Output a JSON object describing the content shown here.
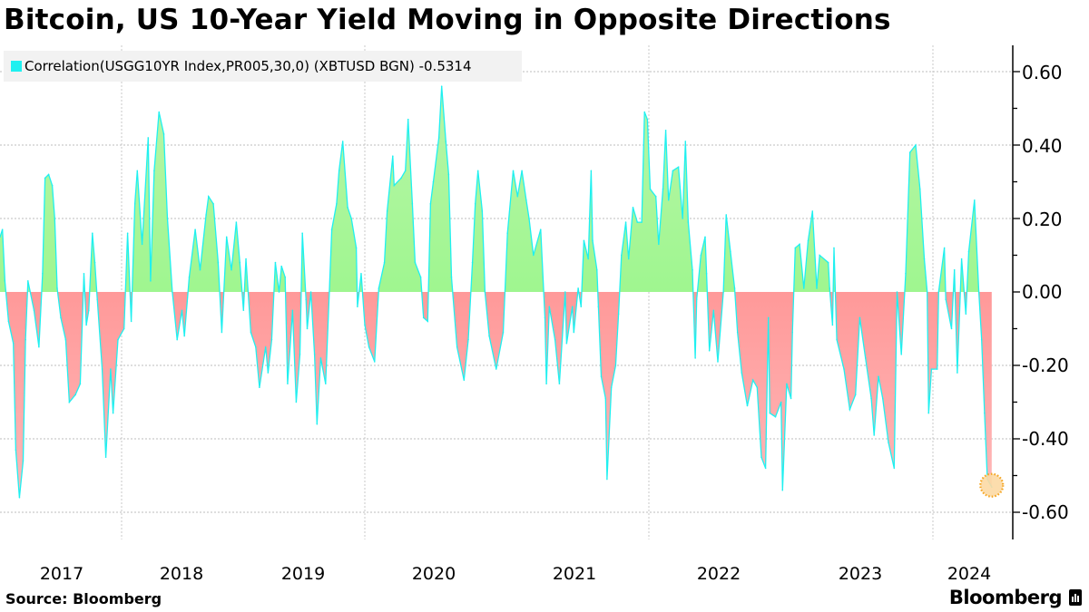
{
  "title": "Bitcoin, US 10-Year Yield Moving in Opposite Directions",
  "source": "Source: Bloomberg",
  "logo": "Bloomberg",
  "colors": {
    "line": "#1ff0f0",
    "positive_fill": "#8cf77e",
    "negative_fill": "#ff8080",
    "highlight": "#f5a623"
  },
  "chart_data": {
    "type": "area",
    "xlabel": "",
    "ylabel": "",
    "ylim": [
      -0.66,
      0.66
    ],
    "yticks": [
      "0.60",
      "0.40",
      "0.20",
      "0.00",
      "-0.20",
      "-0.40",
      "-0.60"
    ],
    "ytick_values": [
      0.6,
      0.4,
      0.2,
      0,
      -0.2,
      -0.4,
      -0.6
    ],
    "xticks": [
      "2017",
      "2018",
      "2019",
      "2020",
      "2021",
      "2022",
      "2023",
      "2024"
    ],
    "grid": true,
    "legend_position": "top-left",
    "series": [
      {
        "name": "Correlation(USGG10YR Index,PR005,30,0) (XBTUSD BGN) -0.5314",
        "last_value": -0.5314,
        "points": [
          [
            2017.0,
            0.15
          ],
          [
            2017.02,
            0.17
          ],
          [
            2017.04,
            0.03
          ],
          [
            2017.07,
            -0.08
          ],
          [
            2017.11,
            -0.14
          ],
          [
            2017.13,
            -0.43
          ],
          [
            2017.16,
            -0.56
          ],
          [
            2017.19,
            -0.46
          ],
          [
            2017.21,
            -0.13
          ],
          [
            2017.23,
            0.03
          ],
          [
            2017.28,
            -0.05
          ],
          [
            2017.32,
            -0.15
          ],
          [
            2017.35,
            0.05
          ],
          [
            2017.37,
            0.31
          ],
          [
            2017.4,
            0.32
          ],
          [
            2017.43,
            0.29
          ],
          [
            2017.45,
            0.2
          ],
          [
            2017.47,
            0.01
          ],
          [
            2017.5,
            -0.07
          ],
          [
            2017.54,
            -0.13
          ],
          [
            2017.57,
            -0.3
          ],
          [
            2017.62,
            -0.28
          ],
          [
            2017.66,
            -0.25
          ],
          [
            2017.69,
            0.05
          ],
          [
            2017.71,
            -0.09
          ],
          [
            2017.73,
            -0.05
          ],
          [
            2017.76,
            0.16
          ],
          [
            2017.78,
            0.08
          ],
          [
            2017.8,
            -0.02
          ],
          [
            2017.84,
            -0.21
          ],
          [
            2017.87,
            -0.45
          ],
          [
            2017.91,
            -0.21
          ],
          [
            2017.93,
            -0.33
          ],
          [
            2017.97,
            -0.13
          ],
          [
            2018.02,
            -0.1
          ],
          [
            2018.05,
            0.16
          ],
          [
            2018.08,
            -0.08
          ],
          [
            2018.11,
            0.24
          ],
          [
            2018.13,
            0.33
          ],
          [
            2018.17,
            0.13
          ],
          [
            2018.22,
            0.42
          ],
          [
            2018.24,
            0.03
          ],
          [
            2018.27,
            0.33
          ],
          [
            2018.31,
            0.49
          ],
          [
            2018.35,
            0.43
          ],
          [
            2018.38,
            0.2
          ],
          [
            2018.42,
            0.0
          ],
          [
            2018.46,
            -0.13
          ],
          [
            2018.5,
            -0.05
          ],
          [
            2018.52,
            -0.12
          ],
          [
            2018.56,
            0.04
          ],
          [
            2018.61,
            0.17
          ],
          [
            2018.65,
            0.06
          ],
          [
            2018.7,
            0.21
          ],
          [
            2018.72,
            0.26
          ],
          [
            2018.76,
            0.24
          ],
          [
            2018.8,
            0.08
          ],
          [
            2018.83,
            -0.11
          ],
          [
            2018.87,
            0.15
          ],
          [
            2018.91,
            0.06
          ],
          [
            2018.95,
            0.19
          ],
          [
            2018.98,
            0.08
          ],
          [
            2019.01,
            -0.05
          ],
          [
            2019.03,
            0.09
          ],
          [
            2019.07,
            -0.11
          ],
          [
            2019.11,
            -0.15
          ],
          [
            2019.14,
            -0.26
          ],
          [
            2019.19,
            -0.15
          ],
          [
            2019.21,
            -0.22
          ],
          [
            2019.24,
            -0.13
          ],
          [
            2019.27,
            0.08
          ],
          [
            2019.3,
            0.0
          ],
          [
            2019.32,
            0.07
          ],
          [
            2019.35,
            0.04
          ],
          [
            2019.37,
            -0.25
          ],
          [
            2019.41,
            -0.05
          ],
          [
            2019.44,
            -0.3
          ],
          [
            2019.47,
            -0.17
          ],
          [
            2019.49,
            0.16
          ],
          [
            2019.52,
            -0.02
          ],
          [
            2019.53,
            -0.1
          ],
          [
            2019.56,
            0.0
          ],
          [
            2019.59,
            -0.17
          ],
          [
            2019.61,
            -0.36
          ],
          [
            2019.64,
            -0.18
          ],
          [
            2019.68,
            -0.25
          ],
          [
            2019.71,
            0.0
          ],
          [
            2019.73,
            0.17
          ],
          [
            2019.77,
            0.24
          ],
          [
            2019.79,
            0.33
          ],
          [
            2019.82,
            0.41
          ],
          [
            2019.86,
            0.23
          ],
          [
            2019.89,
            0.2
          ],
          [
            2019.93,
            0.12
          ],
          [
            2019.94,
            -0.04
          ],
          [
            2019.97,
            0.05
          ],
          [
            2020.0,
            -0.09
          ],
          [
            2020.03,
            -0.15
          ],
          [
            2020.07,
            -0.19
          ],
          [
            2020.1,
            0.01
          ],
          [
            2020.14,
            0.08
          ],
          [
            2020.16,
            0.22
          ],
          [
            2020.2,
            0.37
          ],
          [
            2020.21,
            0.29
          ],
          [
            2020.26,
            0.31
          ],
          [
            2020.29,
            0.33
          ],
          [
            2020.31,
            0.47
          ],
          [
            2020.34,
            0.24
          ],
          [
            2020.36,
            0.08
          ],
          [
            2020.4,
            0.04
          ],
          [
            2020.42,
            -0.07
          ],
          [
            2020.45,
            -0.08
          ],
          [
            2020.47,
            0.24
          ],
          [
            2020.49,
            0.3
          ],
          [
            2020.53,
            0.42
          ],
          [
            2020.55,
            0.56
          ],
          [
            2020.58,
            0.41
          ],
          [
            2020.6,
            0.32
          ],
          [
            2020.62,
            0.04
          ],
          [
            2020.66,
            -0.15
          ],
          [
            2020.71,
            -0.24
          ],
          [
            2020.74,
            -0.13
          ],
          [
            2020.77,
            0.08
          ],
          [
            2020.79,
            0.24
          ],
          [
            2020.81,
            0.33
          ],
          [
            2020.84,
            0.22
          ],
          [
            2020.86,
            0.0
          ],
          [
            2020.89,
            -0.12
          ],
          [
            2020.94,
            -0.21
          ],
          [
            2020.99,
            -0.11
          ],
          [
            2021.02,
            0.16
          ],
          [
            2021.06,
            0.33
          ],
          [
            2021.09,
            0.26
          ],
          [
            2021.12,
            0.33
          ],
          [
            2021.15,
            0.25
          ],
          [
            2021.17,
            0.2
          ],
          [
            2021.2,
            0.1
          ],
          [
            2021.25,
            0.17
          ],
          [
            2021.28,
            -0.07
          ],
          [
            2021.29,
            -0.25
          ],
          [
            2021.31,
            -0.04
          ],
          [
            2021.35,
            -0.13
          ],
          [
            2021.38,
            -0.25
          ],
          [
            2021.42,
            0.0
          ],
          [
            2021.43,
            -0.14
          ],
          [
            2021.47,
            -0.04
          ],
          [
            2021.48,
            -0.11
          ],
          [
            2021.51,
            0.01
          ],
          [
            2021.53,
            -0.04
          ],
          [
            2021.55,
            0.14
          ],
          [
            2021.58,
            0.09
          ],
          [
            2021.6,
            0.33
          ],
          [
            2021.61,
            0.14
          ],
          [
            2021.64,
            0.06
          ],
          [
            2021.65,
            -0.04
          ],
          [
            2021.67,
            -0.23
          ],
          [
            2021.7,
            -0.29
          ],
          [
            2021.71,
            -0.51
          ],
          [
            2021.74,
            -0.26
          ],
          [
            2021.77,
            -0.2
          ],
          [
            2021.79,
            -0.06
          ],
          [
            2021.81,
            0.1
          ],
          [
            2021.84,
            0.19
          ],
          [
            2021.86,
            0.09
          ],
          [
            2021.89,
            0.23
          ],
          [
            2021.92,
            0.19
          ],
          [
            2021.95,
            0.19
          ],
          [
            2021.97,
            0.49
          ],
          [
            2021.99,
            0.47
          ],
          [
            2022.01,
            0.28
          ],
          [
            2022.05,
            0.26
          ],
          [
            2022.07,
            0.13
          ],
          [
            2022.1,
            0.28
          ],
          [
            2022.12,
            0.44
          ],
          [
            2022.14,
            0.25
          ],
          [
            2022.17,
            0.33
          ],
          [
            2022.21,
            0.34
          ],
          [
            2022.24,
            0.2
          ],
          [
            2022.26,
            0.41
          ],
          [
            2022.28,
            0.19
          ],
          [
            2022.31,
            0.06
          ],
          [
            2022.33,
            -0.18
          ],
          [
            2022.34,
            -0.02
          ],
          [
            2022.37,
            0.1
          ],
          [
            2022.4,
            0.15
          ],
          [
            2022.41,
            0.05
          ],
          [
            2022.43,
            -0.16
          ],
          [
            2022.46,
            -0.05
          ],
          [
            2022.49,
            -0.19
          ],
          [
            2022.53,
            0.0
          ],
          [
            2022.55,
            0.21
          ],
          [
            2022.58,
            0.11
          ],
          [
            2022.61,
            0.01
          ],
          [
            2022.63,
            -0.11
          ],
          [
            2022.66,
            -0.22
          ],
          [
            2022.7,
            -0.31
          ],
          [
            2022.74,
            -0.24
          ],
          [
            2022.77,
            -0.26
          ],
          [
            2022.8,
            -0.45
          ],
          [
            2022.83,
            -0.48
          ],
          [
            2022.85,
            -0.07
          ],
          [
            2022.86,
            -0.33
          ],
          [
            2022.9,
            -0.34
          ],
          [
            2022.94,
            -0.3
          ],
          [
            2022.95,
            -0.54
          ],
          [
            2022.98,
            -0.25
          ],
          [
            2023.01,
            -0.29
          ],
          [
            2023.02,
            -0.11
          ],
          [
            2023.04,
            0.12
          ],
          [
            2023.07,
            0.13
          ],
          [
            2023.1,
            0.01
          ],
          [
            2023.13,
            0.14
          ],
          [
            2023.16,
            0.22
          ],
          [
            2023.19,
            0.01
          ],
          [
            2023.21,
            0.1
          ],
          [
            2023.27,
            0.08
          ],
          [
            2023.28,
            0.01
          ],
          [
            2023.3,
            -0.09
          ],
          [
            2023.31,
            0.12
          ],
          [
            2023.33,
            -0.13
          ],
          [
            2023.38,
            -0.21
          ],
          [
            2023.42,
            -0.32
          ],
          [
            2023.46,
            -0.28
          ],
          [
            2023.49,
            -0.07
          ],
          [
            2023.53,
            -0.18
          ],
          [
            2023.57,
            -0.29
          ],
          [
            2023.59,
            -0.39
          ],
          [
            2023.62,
            -0.23
          ],
          [
            2023.65,
            -0.29
          ],
          [
            2023.69,
            -0.41
          ],
          [
            2023.73,
            -0.48
          ],
          [
            2023.75,
            0.0
          ],
          [
            2023.78,
            -0.17
          ],
          [
            2023.81,
            0.05
          ],
          [
            2023.84,
            0.38
          ],
          [
            2023.88,
            0.4
          ],
          [
            2023.91,
            0.28
          ],
          [
            2023.94,
            0.09
          ],
          [
            2023.96,
            0.0
          ],
          [
            2023.97,
            -0.33
          ],
          [
            2023.99,
            -0.21
          ],
          [
            2024.03,
            -0.21
          ],
          [
            2024.04,
            0.0
          ],
          [
            2024.08,
            0.12
          ],
          [
            2024.09,
            -0.02
          ],
          [
            2024.13,
            -0.1
          ],
          [
            2024.15,
            0.06
          ],
          [
            2024.17,
            -0.22
          ],
          [
            2024.2,
            0.09
          ],
          [
            2024.23,
            -0.06
          ],
          [
            2024.25,
            0.11
          ],
          [
            2024.29,
            0.25
          ],
          [
            2024.32,
            0.0
          ],
          [
            2024.34,
            -0.13
          ],
          [
            2024.36,
            -0.33
          ],
          [
            2024.38,
            -0.51
          ],
          [
            2024.41,
            -0.5314
          ]
        ]
      }
    ]
  }
}
